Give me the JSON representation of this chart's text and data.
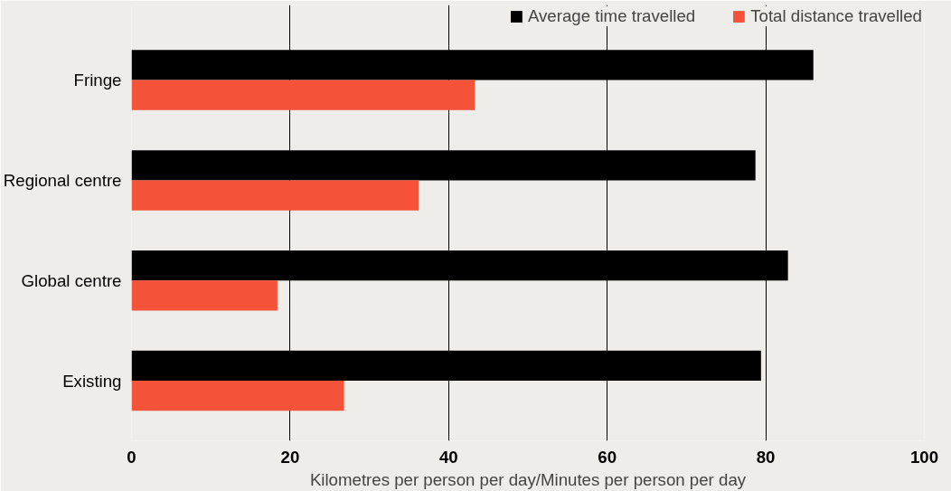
{
  "chart_data": {
    "type": "bar",
    "orientation": "horizontal",
    "xlabel": "Kilometres per person per day/Minutes per person per day",
    "categories": [
      "Fringe",
      "Regional centre",
      "Global centre",
      "Existing"
    ],
    "series": [
      {
        "name": "Average time travelled",
        "color": "#000000",
        "values": [
          86,
          78.7,
          82.8,
          79.4
        ]
      },
      {
        "name": "Total distance travelled",
        "color": "#f4533a",
        "values": [
          43.3,
          36.2,
          18.4,
          26.8
        ]
      }
    ],
    "xlim": [
      0,
      100
    ],
    "xticks": [
      0,
      20,
      40,
      60,
      80,
      100
    ],
    "grid": "x",
    "legend": "top right"
  }
}
